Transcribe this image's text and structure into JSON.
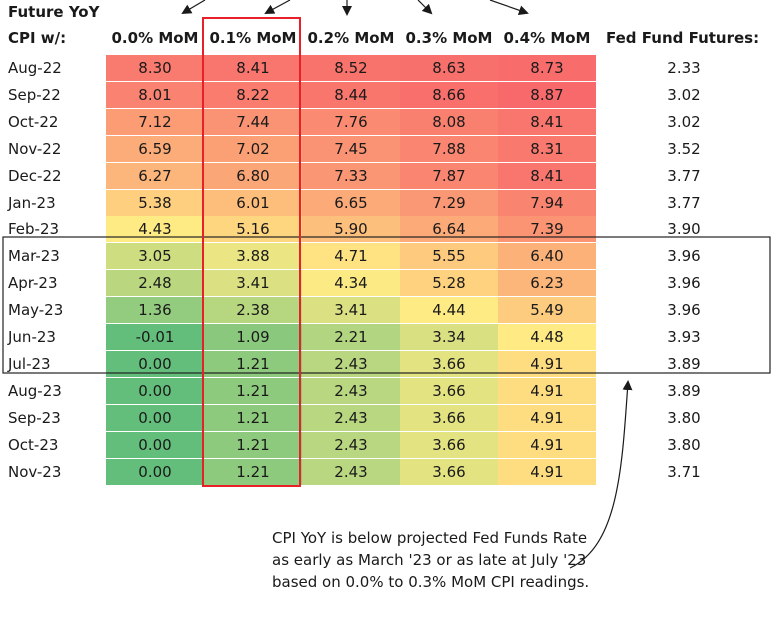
{
  "header": {
    "title_line1": "Future YoY",
    "row_label": "CPI w/:",
    "columns": [
      "0.0% MoM",
      "0.1% MoM",
      "0.2% MoM",
      "0.3% MoM",
      "0.4% MoM"
    ],
    "fed_label": "Fed Fund Futures:"
  },
  "annotation": "CPI YoY is below projected Fed Funds Rate as early as March '23 or as late at July '23 based on 0.0% to 0.3% MoM CPI readings.",
  "colors": {
    "high": "#f8696b",
    "mid": "#ffeb84",
    "low": "#63be7b",
    "highlight_box": "#e8202a",
    "range_box": "#222222"
  },
  "chart_data": {
    "type": "table",
    "months": [
      "Aug-22",
      "Sep-22",
      "Oct-22",
      "Nov-22",
      "Dec-22",
      "Jan-23",
      "Feb-23",
      "Mar-23",
      "Apr-23",
      "May-23",
      "Jun-23",
      "Jul-23",
      "Aug-23",
      "Sep-23",
      "Oct-23",
      "Nov-23"
    ],
    "columns": [
      "0.0% MoM",
      "0.1% MoM",
      "0.2% MoM",
      "0.3% MoM",
      "0.4% MoM"
    ],
    "values": [
      [
        "8.30",
        "8.41",
        "8.52",
        "8.63",
        "8.73"
      ],
      [
        "8.01",
        "8.22",
        "8.44",
        "8.66",
        "8.87"
      ],
      [
        "7.12",
        "7.44",
        "7.76",
        "8.08",
        "8.41"
      ],
      [
        "6.59",
        "7.02",
        "7.45",
        "7.88",
        "8.31"
      ],
      [
        "6.27",
        "6.80",
        "7.33",
        "7.87",
        "8.41"
      ],
      [
        "5.38",
        "6.01",
        "6.65",
        "7.29",
        "7.94"
      ],
      [
        "4.43",
        "5.16",
        "5.90",
        "6.64",
        "7.39"
      ],
      [
        "3.05",
        "3.88",
        "4.71",
        "5.55",
        "6.40"
      ],
      [
        "2.48",
        "3.41",
        "4.34",
        "5.28",
        "6.23"
      ],
      [
        "1.36",
        "2.38",
        "3.41",
        "4.44",
        "5.49"
      ],
      [
        "-0.01",
        "1.09",
        "2.21",
        "3.34",
        "4.48"
      ],
      [
        "0.00",
        "1.21",
        "2.43",
        "3.66",
        "4.91"
      ],
      [
        "0.00",
        "1.21",
        "2.43",
        "3.66",
        "4.91"
      ],
      [
        "0.00",
        "1.21",
        "2.43",
        "3.66",
        "4.91"
      ],
      [
        "0.00",
        "1.21",
        "2.43",
        "3.66",
        "4.91"
      ],
      [
        "0.00",
        "1.21",
        "2.43",
        "3.66",
        "4.91"
      ]
    ],
    "fed_fund_futures": [
      "2.33",
      "3.02",
      "3.02",
      "3.52",
      "3.77",
      "3.77",
      "3.90",
      "3.96",
      "3.96",
      "3.96",
      "3.93",
      "3.89",
      "3.89",
      "3.80",
      "3.80",
      "3.71"
    ],
    "highlighted_column": "0.1% MoM",
    "boxed_months": [
      "Mar-23",
      "Apr-23",
      "May-23",
      "Jun-23",
      "Jul-23"
    ],
    "color_scale": "red-yellow-green (high to low)"
  }
}
